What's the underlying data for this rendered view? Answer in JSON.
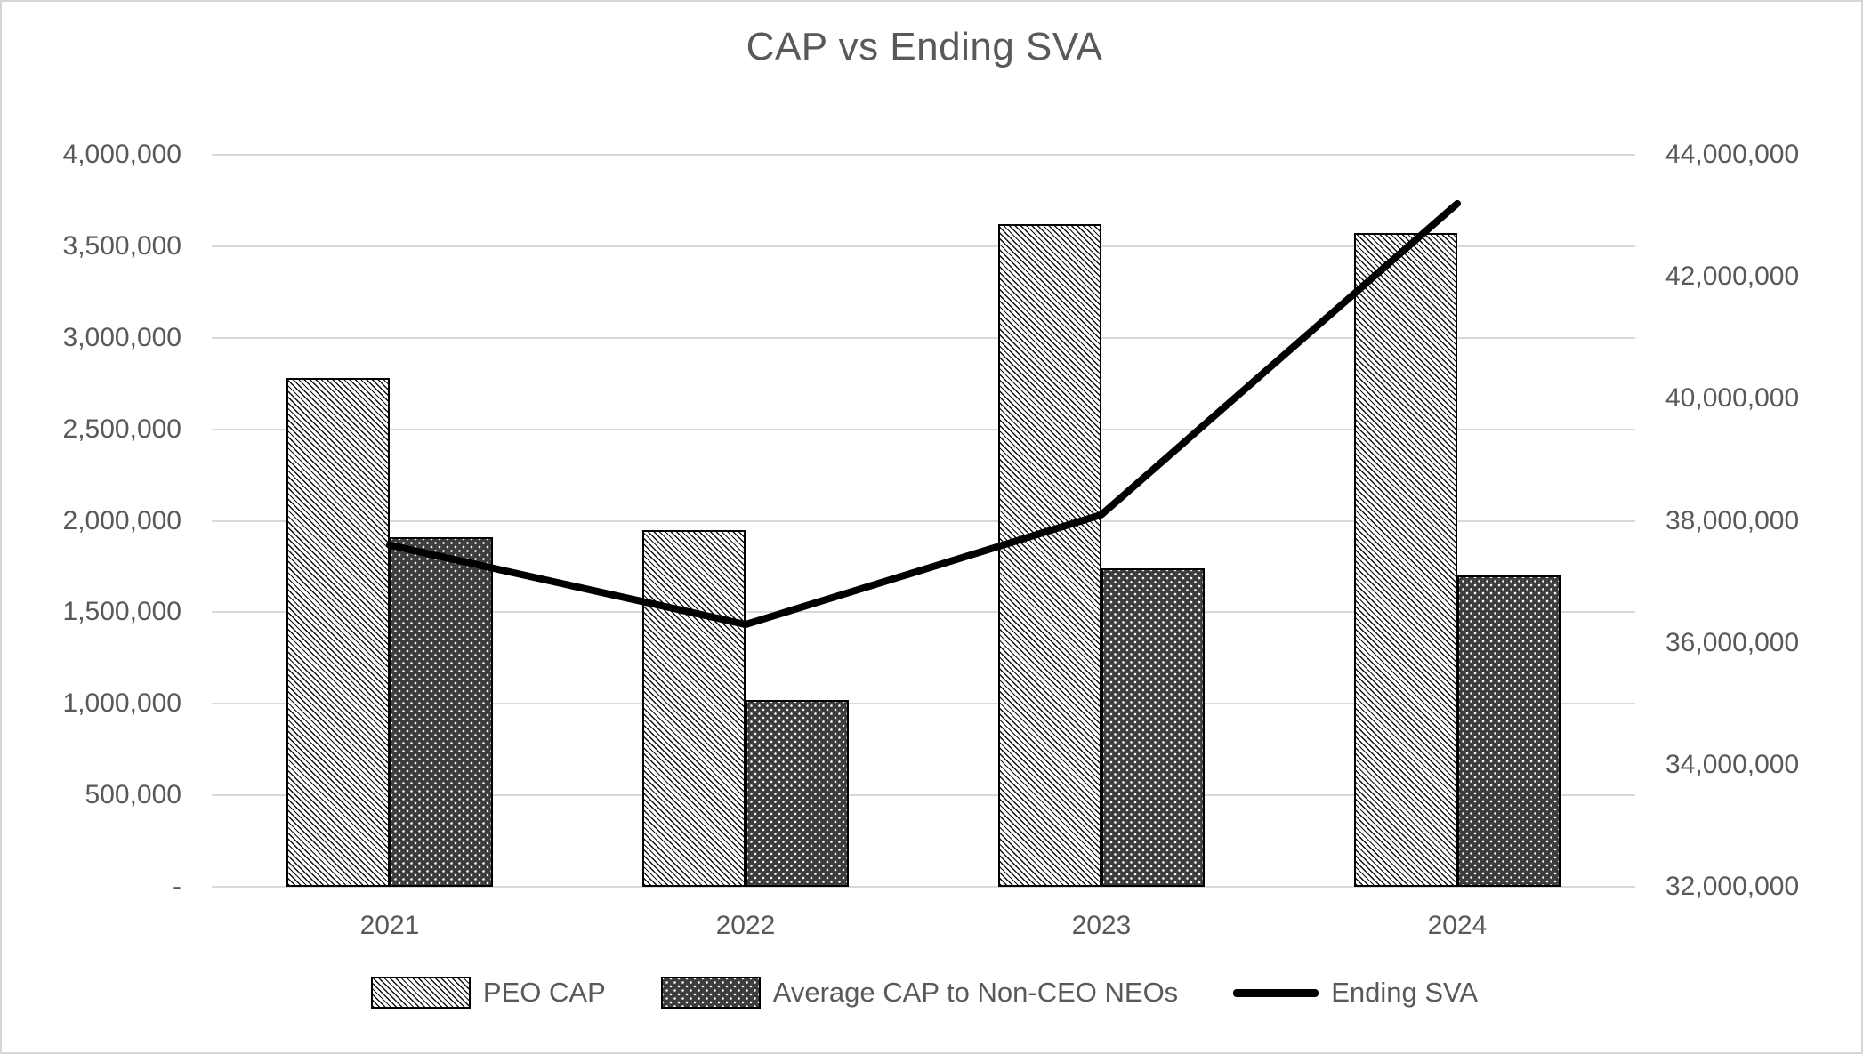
{
  "chart_data": {
    "type": "combo-bar-line",
    "title": "CAP vs Ending SVA",
    "categories": [
      "2021",
      "2022",
      "2023",
      "2024"
    ],
    "series": [
      {
        "name": "PEO CAP",
        "type": "bar",
        "axis": "left",
        "pattern": "light-diagonal-hatch",
        "values": [
          2780000,
          1950000,
          3620000,
          3570000
        ]
      },
      {
        "name": "Average CAP to Non-CEO NEOs",
        "type": "bar",
        "axis": "left",
        "pattern": "dark-white-dots",
        "values": [
          1910000,
          1020000,
          1740000,
          1700000
        ]
      },
      {
        "name": "Ending SVA",
        "type": "line",
        "axis": "right",
        "color": "#000000",
        "values": [
          37600000,
          36300000,
          38100000,
          43200000
        ]
      }
    ],
    "left_axis": {
      "min": 0,
      "max": 4000000,
      "step": 500000,
      "tick_labels": [
        "-",
        "500,000",
        "1,000,000",
        "1,500,000",
        "2,000,000",
        "2,500,000",
        "3,000,000",
        "3,500,000",
        "4,000,000"
      ]
    },
    "right_axis": {
      "min": 32000000,
      "max": 44000000,
      "step": 2000000,
      "tick_labels": [
        "32,000,000",
        "34,000,000",
        "36,000,000",
        "38,000,000",
        "40,000,000",
        "42,000,000",
        "44,000,000"
      ]
    },
    "grid": true,
    "legend_position": "bottom"
  },
  "legend": {
    "items": [
      {
        "label": "PEO CAP",
        "swatch": "hatched-bar"
      },
      {
        "label": "Average CAP to Non-CEO NEOs",
        "swatch": "dotted-bar"
      },
      {
        "label": "Ending SVA",
        "swatch": "line"
      }
    ]
  },
  "colors": {
    "gridline": "#d9d9d9",
    "axis_text": "#595959",
    "title_text": "#595959",
    "bar_border": "#000000",
    "dark_bar_fill": "#3d3d3d",
    "line": "#000000",
    "background": "#ffffff"
  }
}
